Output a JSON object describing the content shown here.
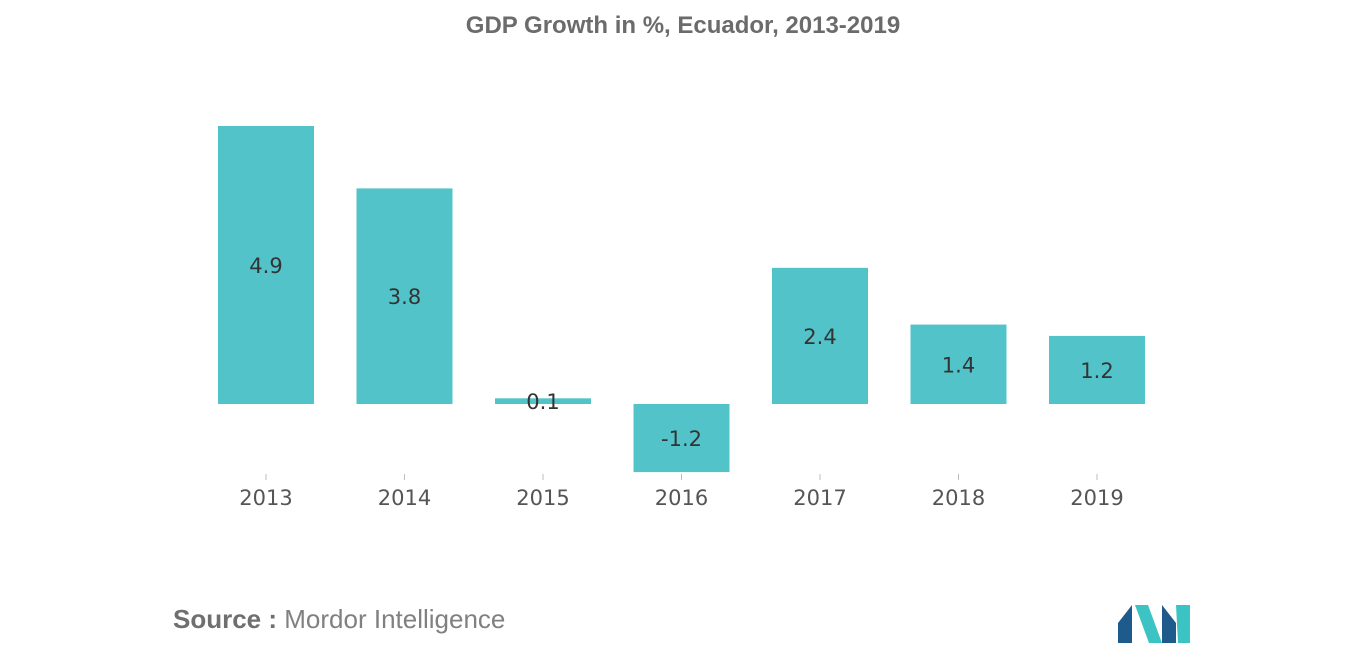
{
  "chart_data": {
    "type": "bar",
    "title": "GDP Growth in %, Ecuador, 2013-2019",
    "categories": [
      "2013",
      "2014",
      "2015",
      "2016",
      "2017",
      "2018",
      "2019"
    ],
    "values": [
      4.9,
      3.8,
      0.1,
      -1.2,
      2.4,
      1.4,
      1.2
    ],
    "data_labels": [
      "4.9",
      "3.8",
      "0.1",
      "-1.2",
      "2.4",
      "1.4",
      "1.2"
    ],
    "xlabel": "",
    "ylabel": "",
    "ylim": [
      -1.2,
      4.9
    ],
    "grid": false,
    "legend": "none",
    "bar_color": "#52c4c9"
  },
  "source": {
    "prefix": "Source :",
    "text": "Mordor Intelligence"
  },
  "logo": {
    "name": "Mordor Intelligence",
    "colors": [
      "#1e5a8c",
      "#3cc3c3"
    ]
  }
}
